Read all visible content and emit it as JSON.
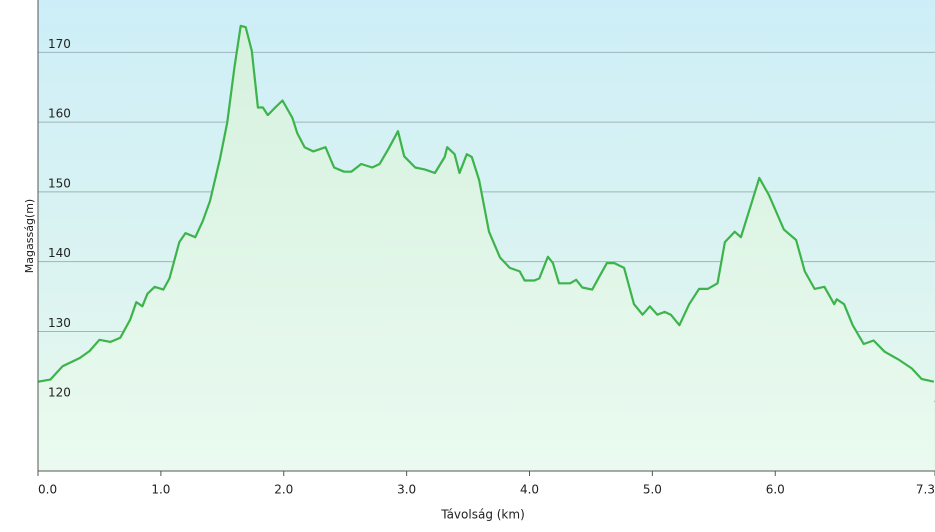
{
  "chart_data": {
    "type": "area",
    "x_label": "Távolság  (km)",
    "y_label": "Magasság(m)",
    "x": [
      0.0,
      0.1,
      0.2,
      0.34,
      0.42,
      0.5,
      0.59,
      0.67,
      0.75,
      0.8,
      0.85,
      0.89,
      0.95,
      1.02,
      1.07,
      1.15,
      1.2,
      1.28,
      1.34,
      1.4,
      1.48,
      1.54,
      1.6,
      1.65,
      1.69,
      1.74,
      1.79,
      1.83,
      1.87,
      1.93,
      1.99,
      2.07,
      2.11,
      2.17,
      2.24,
      2.29,
      2.34,
      2.41,
      2.49,
      2.55,
      2.63,
      2.72,
      2.78,
      2.85,
      2.93,
      2.98,
      3.07,
      3.15,
      3.23,
      3.31,
      3.33,
      3.39,
      3.43,
      3.49,
      3.53,
      3.59,
      3.67,
      3.76,
      3.84,
      3.92,
      3.96,
      4.04,
      4.08,
      4.15,
      4.19,
      4.24,
      4.33,
      4.38,
      4.43,
      4.51,
      4.57,
      4.63,
      4.69,
      4.77,
      4.85,
      4.92,
      4.98,
      5.04,
      5.1,
      5.15,
      5.22,
      5.3,
      5.38,
      5.45,
      5.53,
      5.59,
      5.67,
      5.72,
      5.8,
      5.87,
      5.95,
      6.07,
      6.17,
      6.24,
      6.32,
      6.4,
      6.48,
      6.5,
      6.56,
      6.63,
      6.72,
      6.8,
      6.89,
      7.01,
      7.11,
      7.19,
      7.29
    ],
    "values": [
      122.8,
      123.1,
      125.0,
      126.2,
      127.2,
      128.8,
      128.5,
      129.1,
      131.7,
      134.2,
      133.6,
      135.4,
      136.4,
      136.0,
      137.6,
      142.8,
      144.1,
      143.5,
      145.8,
      148.7,
      154.7,
      159.9,
      168.0,
      173.8,
      173.6,
      170.2,
      162.1,
      162.1,
      161.0,
      162.1,
      163.1,
      160.6,
      158.4,
      156.4,
      155.8,
      156.1,
      156.4,
      153.5,
      152.9,
      152.9,
      154.0,
      153.5,
      154.0,
      156.1,
      158.7,
      155.1,
      153.5,
      153.2,
      152.7,
      155.0,
      156.4,
      155.4,
      152.7,
      155.4,
      155.0,
      151.7,
      144.3,
      140.6,
      139.1,
      138.6,
      137.3,
      137.3,
      137.6,
      140.7,
      139.8,
      136.9,
      136.9,
      137.4,
      136.3,
      136.0,
      137.9,
      139.8,
      139.8,
      139.1,
      133.9,
      132.4,
      133.6,
      132.4,
      132.8,
      132.4,
      130.9,
      133.9,
      136.1,
      136.1,
      136.9,
      142.8,
      144.3,
      143.5,
      148.0,
      152.0,
      149.5,
      144.6,
      143.1,
      138.6,
      136.1,
      136.4,
      133.9,
      134.6,
      133.9,
      130.9,
      128.2,
      128.7,
      127.1,
      125.9,
      124.7,
      123.2,
      122.8
    ],
    "color": "#3cb44b",
    "xlim": [
      0,
      7.3
    ],
    "ylim": [
      110,
      177.5
    ],
    "xticks": [
      {
        "value": 0,
        "label": "0.0"
      },
      {
        "value": 1,
        "label": "1.0"
      },
      {
        "value": 2,
        "label": "2.0"
      },
      {
        "value": 3,
        "label": "3.0"
      },
      {
        "value": 4,
        "label": "4.0"
      },
      {
        "value": 5,
        "label": "5.0"
      },
      {
        "value": 6,
        "label": "6.0"
      },
      7.3
    ],
    "yticks": [
      120,
      130,
      140,
      150,
      160,
      170
    ],
    "grid": true
  }
}
